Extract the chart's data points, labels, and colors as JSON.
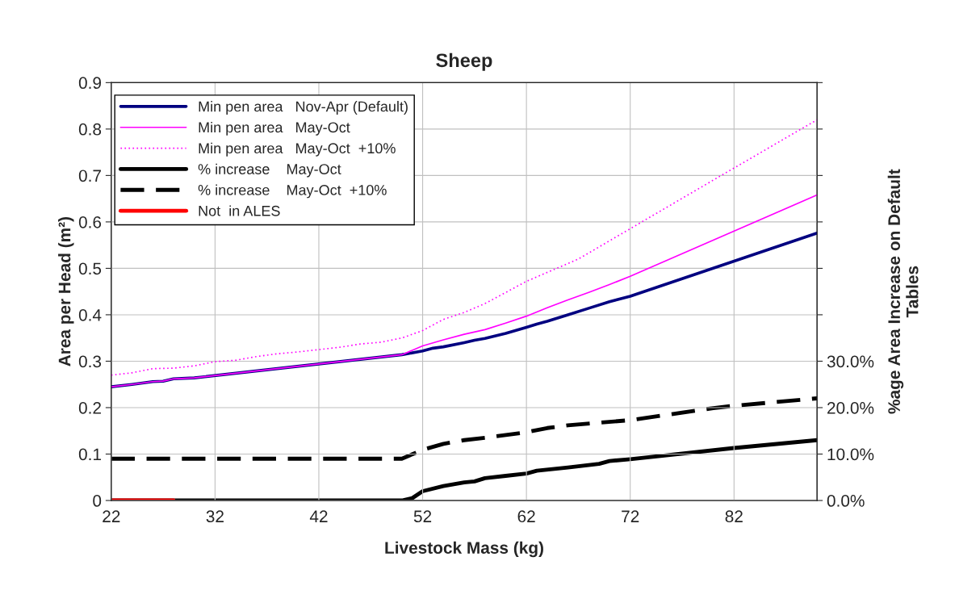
{
  "chart_data": {
    "type": "line",
    "title": "Sheep",
    "xlabel": "Livestock Mass (kg)",
    "ylabel": "Area per Head (m²)",
    "y2label": "%age Area Increase on Default\nTables",
    "xlim": [
      22,
      90
    ],
    "xticks": [
      22,
      32,
      42,
      52,
      62,
      72,
      82
    ],
    "ylim": [
      0,
      0.9
    ],
    "yticks": [
      0,
      0.1,
      0.2,
      0.3,
      0.4,
      0.5,
      0.6,
      0.7,
      0.8,
      0.9
    ],
    "y2lim": [
      0,
      90
    ],
    "y2ticks": [
      {
        "value": 0,
        "label": "0.0%"
      },
      {
        "value": 10,
        "label": "10.0%"
      },
      {
        "value": 20,
        "label": "20.0%"
      },
      {
        "value": 30,
        "label": "30.0%"
      },
      {
        "value": 40,
        "label": null
      },
      {
        "value": 50,
        "label": null
      },
      {
        "value": 60,
        "label": null
      },
      {
        "value": 70,
        "label": null
      },
      {
        "value": 80,
        "label": null
      },
      {
        "value": 90,
        "label": null
      }
    ],
    "grid": true,
    "legend": "top left",
    "marker": "none",
    "series": [
      {
        "name": "Min pen area   Nov-Apr (Default)",
        "color": "#000080",
        "line_style": "solid",
        "x": [
          22,
          24,
          26,
          27,
          28,
          30,
          50,
          52,
          53,
          54,
          56,
          57,
          58,
          60,
          62,
          63,
          64,
          66,
          68,
          70,
          72,
          90
        ],
        "values": [
          0.245,
          0.25,
          0.256,
          0.257,
          0.262,
          0.264,
          0.314,
          0.322,
          0.328,
          0.331,
          0.34,
          0.345,
          0.349,
          0.36,
          0.373,
          0.38,
          0.386,
          0.4,
          0.414,
          0.428,
          0.44,
          0.576
        ]
      },
      {
        "name": "Min pen area   May-Oct",
        "color": "#ff00ff",
        "line_style": "solid",
        "x": [
          22,
          24,
          26,
          27,
          28,
          30,
          50,
          52,
          54,
          56,
          58,
          60,
          62,
          63,
          64,
          66,
          68,
          70,
          72,
          90
        ],
        "values": [
          0.245,
          0.25,
          0.256,
          0.257,
          0.262,
          0.264,
          0.314,
          0.333,
          0.346,
          0.358,
          0.368,
          0.382,
          0.397,
          0.406,
          0.415,
          0.432,
          0.448,
          0.465,
          0.483,
          0.658
        ]
      },
      {
        "name": "Min pen area   May-Oct  +10%",
        "color": "#ff00ff",
        "line_style": "dotted",
        "x": [
          22,
          24,
          26,
          28,
          30,
          32,
          34,
          36,
          38,
          40,
          42,
          44,
          46,
          48,
          50,
          52,
          54,
          56,
          58,
          62,
          67,
          80,
          90
        ],
        "values": [
          0.27,
          0.275,
          0.284,
          0.285,
          0.29,
          0.299,
          0.302,
          0.31,
          0.316,
          0.32,
          0.325,
          0.33,
          0.337,
          0.341,
          0.35,
          0.366,
          0.39,
          0.405,
          0.424,
          0.472,
          0.52,
          0.69,
          0.82
        ]
      },
      {
        "name": "% increase    May-Oct",
        "color": "#000000",
        "line_style": "solid",
        "axis": "y2",
        "x": [
          22,
          50,
          51,
          52,
          54,
          56,
          57,
          58,
          60,
          62,
          63,
          66,
          69,
          70,
          72,
          82,
          90
        ],
        "values": [
          0,
          0,
          0.5,
          2.0,
          3.1,
          3.9,
          4.1,
          4.8,
          5.3,
          5.8,
          6.4,
          7.1,
          7.9,
          8.5,
          8.9,
          11.3,
          13.0
        ]
      },
      {
        "name": "% increase    May-Oct  +10%",
        "color": "#000000",
        "line_style": "dashed",
        "axis": "y2",
        "x": [
          22,
          50,
          52,
          54,
          56,
          58,
          62,
          64,
          66,
          72,
          80,
          82,
          90
        ],
        "values": [
          9,
          9,
          10.9,
          12.2,
          13.0,
          13.5,
          14.7,
          15.6,
          16.2,
          17.3,
          19.9,
          20.4,
          22.0
        ]
      },
      {
        "name": "Not  in ALES",
        "color": "#ff0000",
        "line_style": "solid",
        "axis": "y2",
        "x": [
          22,
          28
        ],
        "values": [
          0,
          0
        ]
      }
    ]
  }
}
